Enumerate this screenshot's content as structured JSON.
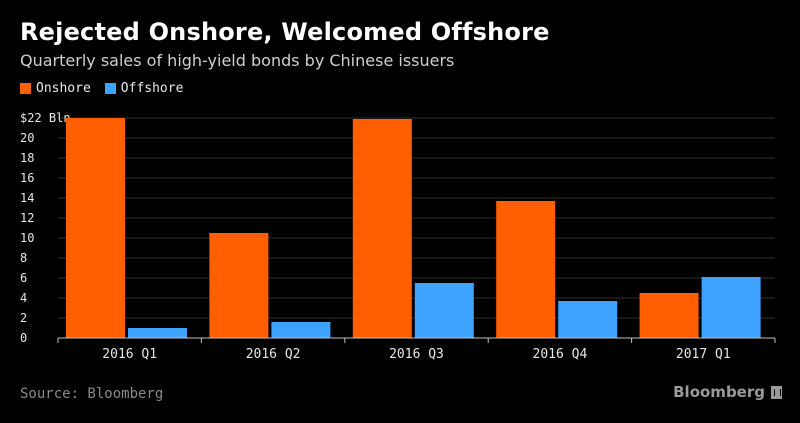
{
  "title": "Rejected Onshore, Welcomed Offshore",
  "subtitle": "Quarterly sales of high-yield bonds by Chinese issuers",
  "source": "Source: Bloomberg",
  "brand": "Bloomberg",
  "colors": {
    "onshore": "#ff5f00",
    "offshore": "#3ea3ff",
    "grid": "#2e2e2e",
    "axis": "#bfbfbf",
    "text": "#e6e6e6"
  },
  "chart_data": {
    "type": "bar",
    "categories": [
      "2016 Q1",
      "2016 Q2",
      "2016 Q3",
      "2016 Q4",
      "2017 Q1"
    ],
    "series": [
      {
        "name": "Onshore",
        "values": [
          22.0,
          10.5,
          21.9,
          13.7,
          4.5
        ]
      },
      {
        "name": "Offshore",
        "values": [
          1.0,
          1.6,
          5.5,
          3.7,
          6.1
        ]
      }
    ],
    "y_unit_label": "$22 Bln",
    "yticks": [
      0,
      2,
      4,
      6,
      8,
      10,
      12,
      14,
      16,
      18,
      20,
      22
    ],
    "ylim": [
      0,
      22
    ],
    "grid": true,
    "legend_position": "top-left"
  }
}
